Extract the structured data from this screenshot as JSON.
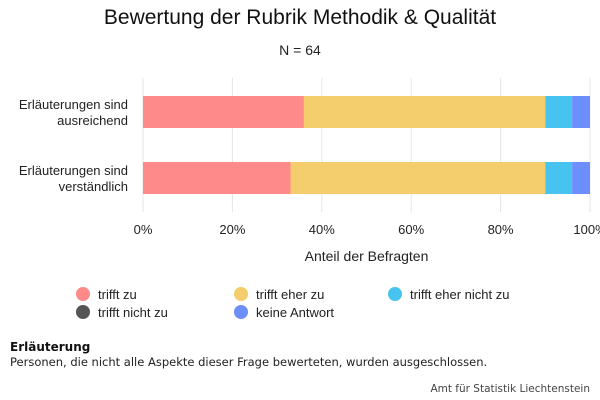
{
  "chart_data": {
    "type": "bar",
    "orientation": "horizontal",
    "stacked": true,
    "title": "Bewertung der Rubrik Methodik & Qualität",
    "subtitle": "N = 64",
    "xlabel": "Anteil der Befragten",
    "ylabel": "",
    "xlim": [
      0,
      100
    ],
    "x_ticks": [
      "0%",
      "20%",
      "40%",
      "60%",
      "80%",
      "100%"
    ],
    "x_tick_values": [
      0,
      20,
      40,
      60,
      80,
      100
    ],
    "grid": true,
    "legend_position": "bottom",
    "categories": [
      [
        "Erläuterungen sind",
        "ausreichend"
      ],
      [
        "Erläuterungen sind",
        "verständlich"
      ]
    ],
    "series": [
      {
        "name": "trifft zu",
        "color": "#ff8a8a",
        "values": [
          36,
          33
        ]
      },
      {
        "name": "trifft eher zu",
        "color": "#f4ce6c",
        "values": [
          54,
          57
        ]
      },
      {
        "name": "trifft eher nicht zu",
        "color": "#47c3f0",
        "values": [
          6,
          6
        ]
      },
      {
        "name": "trifft nicht zu",
        "color": "#555555",
        "values": [
          0,
          0
        ]
      },
      {
        "name": "keine Antwort",
        "color": "#6c8ffc",
        "values": [
          4,
          4
        ]
      }
    ]
  },
  "note": {
    "title": "Erläuterung",
    "text": "Personen, die nicht alle Aspekte dieser Frage bewerteten, wurden ausgeschlossen."
  },
  "source": "Amt für Statistik Liechtenstein"
}
